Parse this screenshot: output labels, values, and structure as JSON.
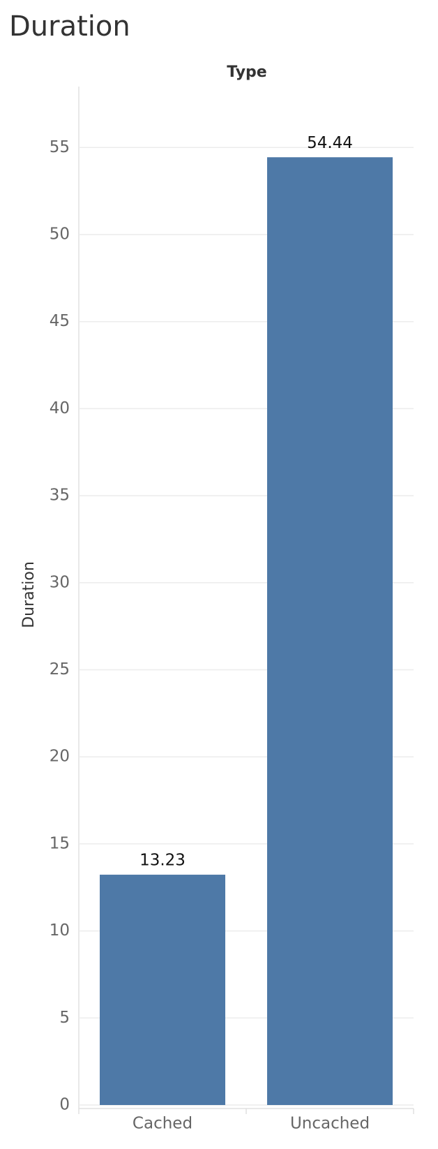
{
  "chart_data": {
    "type": "bar",
    "title": "Duration",
    "column_header": "Type",
    "y_label": "Duration",
    "categories": [
      "Cached",
      "Uncached"
    ],
    "values": [
      13.23,
      54.44
    ],
    "color": "#4e79a7",
    "ylim": [
      0,
      58.5
    ],
    "yticks": [
      0,
      5,
      10,
      15,
      20,
      25,
      30,
      35,
      40,
      45,
      50,
      55
    ],
    "grid": true
  }
}
